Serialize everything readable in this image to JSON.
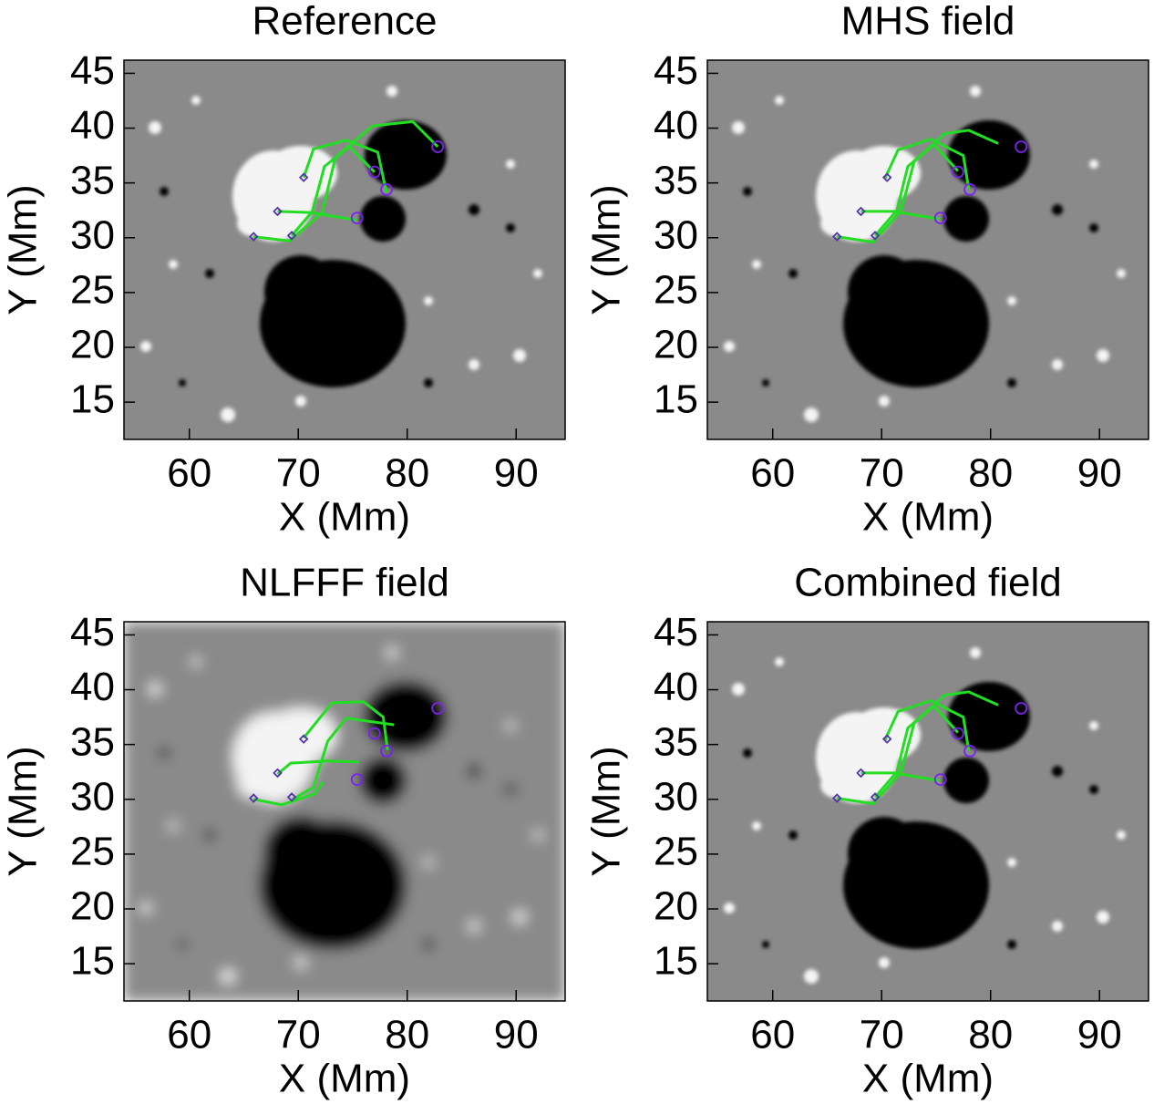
{
  "chart_data": [
    {
      "type": "line",
      "title": "Reference",
      "xlabel": "X (Mm)",
      "ylabel": "Y (Mm)",
      "xlim": [
        54,
        94.5
      ],
      "ylim": [
        11.6,
        46.2
      ],
      "xticks": [
        60,
        70,
        80,
        90
      ],
      "yticks": [
        15,
        20,
        25,
        30,
        35,
        40,
        45
      ],
      "series": [
        {
          "color": "#22dd22",
          "x": [
            70.5,
            71.4,
            74.4,
            77.3,
            78.1
          ],
          "y": [
            35.5,
            38.1,
            38.9,
            37.8,
            34.1
          ]
        },
        {
          "color": "#22dd22",
          "x": [
            68.1,
            71.1,
            75.4
          ],
          "y": [
            32.4,
            32.3,
            31.6
          ]
        },
        {
          "color": "#22dd22",
          "x": [
            65.9,
            69.2,
            72.2,
            73.4,
            76.8,
            80.5,
            82.8
          ],
          "y": [
            30.1,
            29.7,
            32.3,
            37.3,
            40.2,
            40.6,
            38.3
          ]
        },
        {
          "color": "#22dd22",
          "x": [
            69.4,
            71.3,
            72.4,
            74.7,
            77.0
          ],
          "y": [
            30.2,
            32.4,
            36.5,
            38.3,
            36.0
          ]
        }
      ],
      "markers": [
        {
          "shape": "diamond",
          "color": "#5533aa",
          "x": [
            70.5,
            68.1,
            65.9,
            69.4
          ],
          "y": [
            35.5,
            32.4,
            30.1,
            30.2
          ]
        },
        {
          "shape": "circle",
          "color": "#7a22ee",
          "x": [
            82.8,
            77.0,
            78.1,
            75.4
          ],
          "y": [
            38.3,
            36.0,
            34.4,
            31.8
          ]
        }
      ]
    },
    {
      "type": "line",
      "title": "MHS field",
      "xlabel": "X (Mm)",
      "ylabel": "Y (Mm)",
      "xlim": [
        54,
        94.5
      ],
      "ylim": [
        11.6,
        46.2
      ],
      "xticks": [
        60,
        70,
        80,
        90
      ],
      "yticks": [
        15,
        20,
        25,
        30,
        35,
        40,
        45
      ],
      "series": [
        {
          "color": "#22dd22",
          "x": [
            70.3,
            71.5,
            74.5,
            77.5,
            78.0
          ],
          "y": [
            35.4,
            38.0,
            39.0,
            37.5,
            34.4
          ]
        },
        {
          "color": "#22dd22",
          "x": [
            68.1,
            71.1,
            75.3
          ],
          "y": [
            32.4,
            32.4,
            31.7
          ]
        },
        {
          "color": "#22dd22",
          "x": [
            65.9,
            69.2,
            71.8,
            73.0,
            75.8,
            78.0,
            80.7
          ],
          "y": [
            30.1,
            29.6,
            32.5,
            37.0,
            39.5,
            39.8,
            38.6
          ]
        },
        {
          "color": "#22dd22",
          "x": [
            69.4,
            71.4,
            72.4,
            74.8,
            77.0
          ],
          "y": [
            30.2,
            32.5,
            36.5,
            38.5,
            36.1
          ]
        }
      ],
      "markers": [
        {
          "shape": "diamond",
          "color": "#5533aa",
          "x": [
            70.5,
            68.1,
            65.9,
            69.4
          ],
          "y": [
            35.5,
            32.4,
            30.1,
            30.2
          ]
        },
        {
          "shape": "circle",
          "color": "#7a22ee",
          "x": [
            82.8,
            77.0,
            78.1,
            75.4
          ],
          "y": [
            38.3,
            36.0,
            34.4,
            31.8
          ]
        }
      ]
    },
    {
      "type": "line",
      "title": "NLFFF field",
      "xlabel": "X (Mm)",
      "ylabel": "Y (Mm)",
      "xlim": [
        54,
        94.5
      ],
      "ylim": [
        11.6,
        46.2
      ],
      "xticks": [
        60,
        70,
        80,
        90
      ],
      "yticks": [
        15,
        20,
        25,
        30,
        35,
        40,
        45
      ],
      "series": [
        {
          "color": "#22dd22",
          "x": [
            70.5,
            73.1,
            76.0,
            77.8,
            78.2
          ],
          "y": [
            35.6,
            38.8,
            38.9,
            37.5,
            34.5
          ]
        },
        {
          "color": "#22dd22",
          "x": [
            68.1,
            69.3,
            72.7,
            75.6
          ],
          "y": [
            32.3,
            33.3,
            33.5,
            33.4
          ]
        },
        {
          "color": "#22dd22",
          "x": [
            65.9,
            68.5,
            71.5,
            72.3
          ],
          "y": [
            30.0,
            29.5,
            30.5,
            31.6
          ]
        },
        {
          "color": "#22dd22",
          "x": [
            69.5,
            71.4,
            72.7,
            74.4,
            78.8
          ],
          "y": [
            30.0,
            31.1,
            35.3,
            37.4,
            36.8
          ]
        }
      ],
      "markers": [
        {
          "shape": "diamond",
          "color": "#5533aa",
          "x": [
            70.5,
            68.1,
            65.9,
            69.4
          ],
          "y": [
            35.5,
            32.4,
            30.1,
            30.2
          ]
        },
        {
          "shape": "circle",
          "color": "#7a22ee",
          "x": [
            82.8,
            77.0,
            78.1,
            75.4
          ],
          "y": [
            38.3,
            36.0,
            34.4,
            31.8
          ]
        }
      ]
    },
    {
      "type": "line",
      "title": "Combined field",
      "xlabel": "X (Mm)",
      "ylabel": "Y (Mm)",
      "xlim": [
        54,
        94.5
      ],
      "ylim": [
        11.6,
        46.2
      ],
      "xticks": [
        60,
        70,
        80,
        90
      ],
      "yticks": [
        15,
        20,
        25,
        30,
        35,
        40,
        45
      ],
      "series": [
        {
          "color": "#22dd22",
          "x": [
            70.3,
            71.5,
            74.5,
            77.5,
            78.0
          ],
          "y": [
            35.4,
            38.0,
            39.0,
            37.5,
            34.4
          ]
        },
        {
          "color": "#22dd22",
          "x": [
            68.1,
            71.1,
            75.3
          ],
          "y": [
            32.4,
            32.4,
            31.7
          ]
        },
        {
          "color": "#22dd22",
          "x": [
            65.9,
            69.2,
            71.8,
            73.0,
            75.8,
            78.0,
            80.7
          ],
          "y": [
            30.1,
            29.6,
            32.5,
            37.0,
            39.5,
            39.8,
            38.6
          ]
        },
        {
          "color": "#22dd22",
          "x": [
            69.4,
            71.4,
            72.4,
            74.8,
            77.0
          ],
          "y": [
            30.2,
            32.5,
            36.5,
            38.5,
            36.1
          ]
        }
      ],
      "markers": [
        {
          "shape": "diamond",
          "color": "#5533aa",
          "x": [
            70.5,
            68.1,
            65.9,
            69.4
          ],
          "y": [
            35.5,
            32.4,
            30.1,
            30.2
          ]
        },
        {
          "shape": "circle",
          "color": "#7a22ee",
          "x": [
            82.8,
            77.0,
            78.1,
            75.4
          ],
          "y": [
            38.3,
            36.0,
            34.4,
            31.8
          ]
        }
      ]
    }
  ]
}
